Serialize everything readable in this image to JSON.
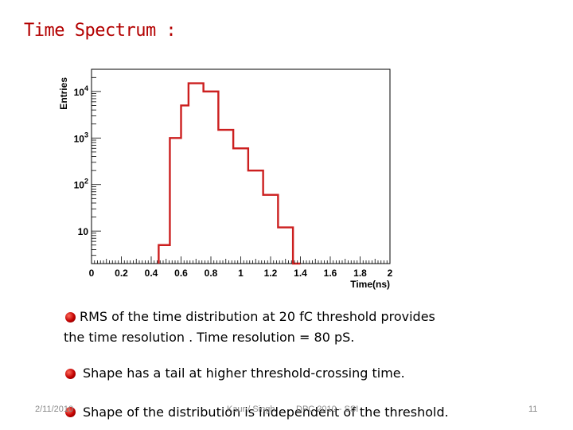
{
  "slide": {
    "title": "Time Spectrum :",
    "bullets": [
      {
        "line1": "RMS of the time  distribution at 20 fC threshold  provides",
        "line2": "the time resolution . Time resolution = 80 pS."
      },
      {
        "line1": "Shape has a tail at higher threshold-crossing time."
      },
      {
        "line1": "Shape of the distribution is independent of the threshold."
      }
    ],
    "footer": {
      "date": "2/11/2010",
      "author": "Kaur / Singh",
      "event": "DPC 2010 - SSI",
      "page": "11"
    }
  },
  "colors": {
    "histogram": "#cc1f1f",
    "title": "#b30000",
    "bullet": "#c00000"
  },
  "chart_data": {
    "type": "histogram",
    "title": "",
    "xlabel": "Time(ns)",
    "ylabel": "Entries",
    "xlim": [
      0,
      2
    ],
    "ylim": [
      2,
      30000
    ],
    "yscale": "log",
    "x_ticks": [
      "0",
      "0.2",
      "0.4",
      "0.6",
      "0.8",
      "1",
      "1.2",
      "1.4",
      "1.6",
      "1.8",
      "2"
    ],
    "y_ticks": [
      {
        "value": 10,
        "base": "10",
        "exp": ""
      },
      {
        "value": 100,
        "base": "10",
        "exp": "2"
      },
      {
        "value": 1000,
        "base": "10",
        "exp": "3"
      },
      {
        "value": 10000,
        "base": "10",
        "exp": "4"
      }
    ],
    "bin_edges": [
      0.45,
      0.525,
      0.6,
      0.65,
      0.75,
      0.85,
      0.95,
      1.05,
      1.15,
      1.25,
      1.35,
      1.4
    ],
    "counts": [
      5,
      1000,
      5000,
      15000,
      10000,
      1500,
      600,
      200,
      60,
      12,
      2
    ]
  }
}
